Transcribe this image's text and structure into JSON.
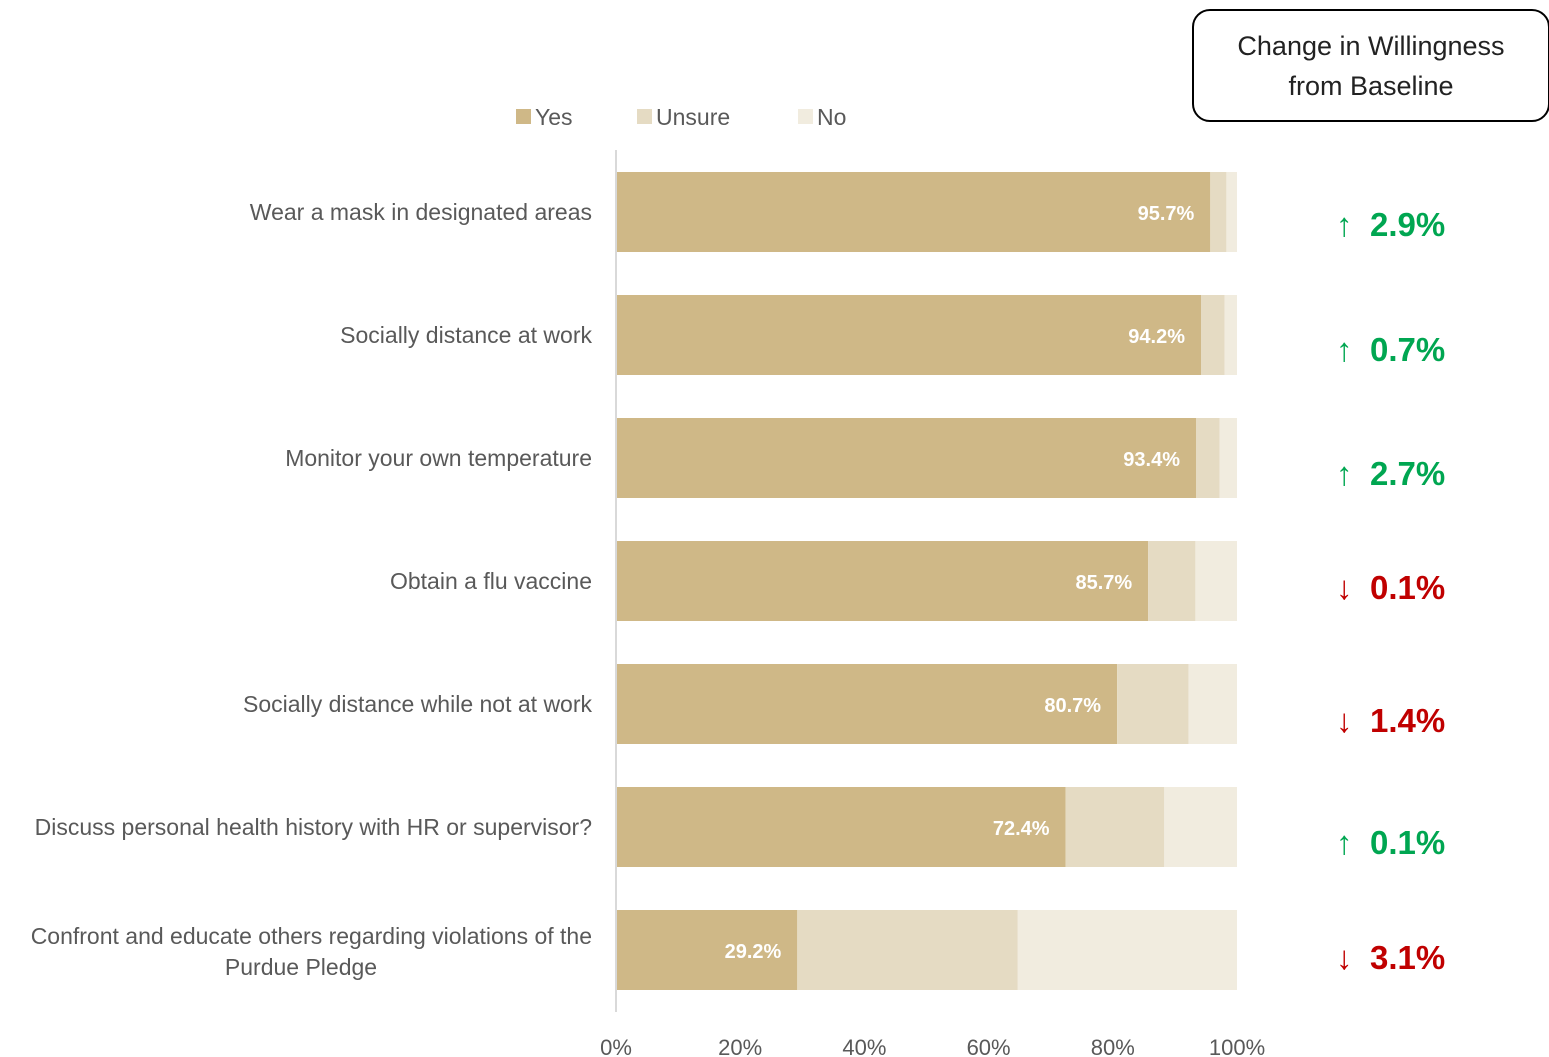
{
  "chart_data": {
    "type": "bar",
    "orientation": "horizontal",
    "stacked": true,
    "categories": [
      "Wear a mask in designated areas",
      "Socially distance at work",
      "Monitor your own temperature",
      "Obtain a flu vaccine",
      "Socially distance while not at work",
      "Discuss personal health history with HR or supervisor?",
      "Confront and educate others regarding violations of the Purdue Pledge"
    ],
    "series": [
      {
        "name": "Yes",
        "color": "#CFB887",
        "values": [
          95.7,
          94.2,
          93.4,
          85.7,
          80.7,
          72.4,
          29.2
        ]
      },
      {
        "name": "Unsure",
        "color": "#E5DBC3",
        "values": [
          2.6,
          3.8,
          3.8,
          7.6,
          11.5,
          15.9,
          35.5
        ]
      },
      {
        "name": "No",
        "color": "#F1ECDF",
        "values": [
          1.7,
          2.0,
          2.8,
          6.7,
          7.8,
          11.7,
          35.3
        ]
      }
    ],
    "data_labels": [
      "95.7%",
      "94.2%",
      "93.4%",
      "85.7%",
      "80.7%",
      "72.4%",
      "29.2%"
    ],
    "xlim": [
      0,
      100
    ],
    "xticks": [
      "0%",
      "20%",
      "40%",
      "60%",
      "80%",
      "100%"
    ],
    "legend_position": "top",
    "change_title": [
      "Change in Willingness",
      "from Baseline"
    ],
    "changes": [
      {
        "arrow": "↑",
        "value": "2.9%",
        "color": "#00A651"
      },
      {
        "arrow": "↑",
        "value": "0.7%",
        "color": "#00A651"
      },
      {
        "arrow": "↑",
        "value": "2.7%",
        "color": "#00A651"
      },
      {
        "arrow": "↓",
        "value": "0.1%",
        "color": "#C00000"
      },
      {
        "arrow": "↓",
        "value": "1.4%",
        "color": "#C00000"
      },
      {
        "arrow": "↑",
        "value": "0.1%",
        "color": "#00A651"
      },
      {
        "arrow": "↓",
        "value": "3.1%",
        "color": "#C00000"
      }
    ]
  }
}
